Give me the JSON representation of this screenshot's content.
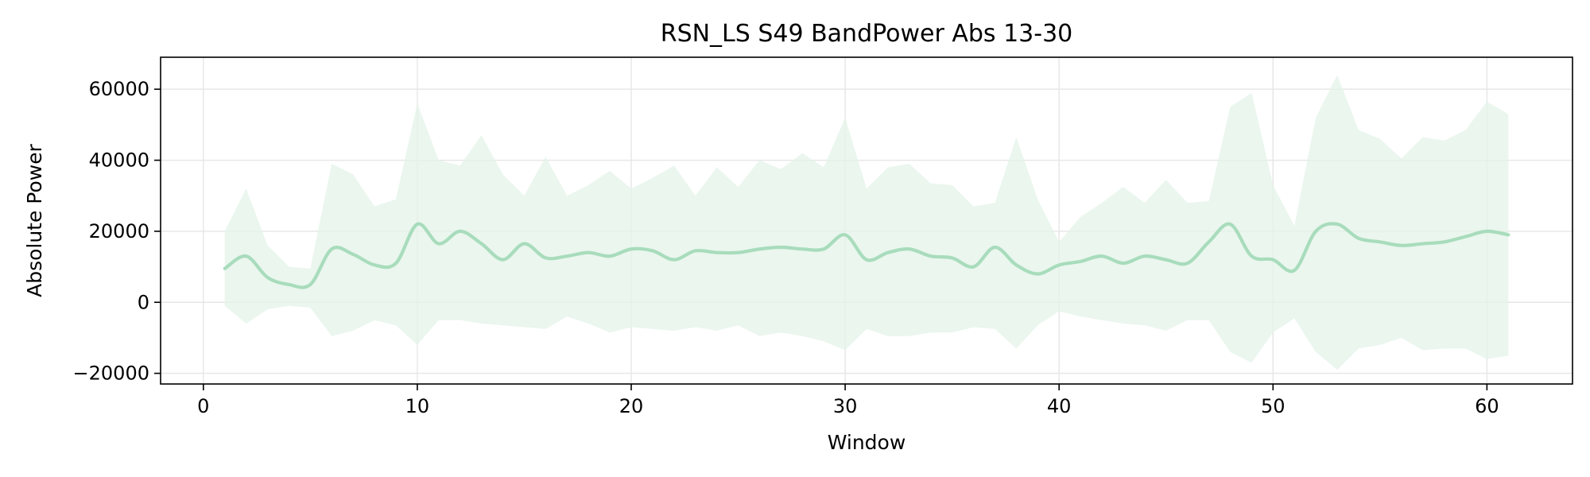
{
  "chart_data": {
    "type": "area",
    "title": "RSN_LS S49 BandPower Abs 13-30",
    "xlabel": "Window",
    "ylabel": "Absolute Power",
    "xlim": [
      -2,
      64
    ],
    "ylim": [
      -23000,
      69000
    ],
    "x_ticks": [
      0,
      10,
      20,
      30,
      40,
      50,
      60
    ],
    "x_tick_labels": [
      "0",
      "10",
      "20",
      "30",
      "40",
      "50",
      "60"
    ],
    "y_ticks": [
      -20000,
      0,
      20000,
      40000,
      60000
    ],
    "y_tick_labels": [
      "−20000",
      "0",
      "20000",
      "40000",
      "60000"
    ],
    "grid": true,
    "legend": "none",
    "colors": {
      "line": "#a8dcbc",
      "band": "#e3f3e8",
      "grid": "#e6e6e6"
    },
    "series": [
      {
        "x": [
          1,
          2,
          3,
          4,
          5,
          6,
          7,
          8,
          9,
          10,
          11,
          12,
          13,
          14,
          15,
          16,
          17,
          18,
          19,
          20,
          21,
          22,
          23,
          24,
          25,
          26,
          27,
          28,
          29,
          30,
          31,
          32,
          33,
          34,
          35,
          36,
          37,
          38,
          39,
          40,
          41,
          42,
          43,
          44,
          45,
          46,
          47,
          48,
          49,
          50,
          51,
          52,
          53,
          54,
          55,
          56,
          57,
          58,
          59,
          60,
          61
        ],
        "mean": [
          9500,
          13000,
          7000,
          5000,
          5000,
          15000,
          13500,
          10500,
          11000,
          22000,
          16500,
          20000,
          16500,
          12000,
          16500,
          12500,
          13000,
          14000,
          13000,
          15000,
          14500,
          12000,
          14500,
          14000,
          14000,
          15000,
          15500,
          15000,
          15000,
          19000,
          12000,
          14000,
          15000,
          13000,
          12500,
          10000,
          15500,
          10500,
          8000,
          10500,
          11500,
          13000,
          11000,
          13000,
          12000,
          11000,
          17000,
          22000,
          13000,
          12000,
          9000,
          20000,
          22000,
          18000,
          17000,
          16000,
          16500,
          17000,
          18500,
          20000,
          19000
        ],
        "upper": [
          20000,
          32000,
          16000,
          10000,
          9500,
          39000,
          36000,
          27000,
          29000,
          56000,
          40000,
          38500,
          47000,
          36000,
          30000,
          41000,
          30000,
          33000,
          37000,
          32000,
          35000,
          38500,
          30000,
          38000,
          32500,
          40000,
          37500,
          42000,
          38000,
          52000,
          32000,
          38000,
          39000,
          33500,
          33000,
          27000,
          28000,
          46500,
          29000,
          17000,
          24000,
          28000,
          32500,
          28000,
          34500,
          28000,
          28500,
          55000,
          59000,
          33000,
          21500,
          52000,
          64000,
          48500,
          46000,
          40500,
          46500,
          45500,
          48500,
          56500,
          53000
        ],
        "lower": [
          -1000,
          -6000,
          -2000,
          -1000,
          -1500,
          -9500,
          -8000,
          -5000,
          -6500,
          -12000,
          -5000,
          -5000,
          -6000,
          -6500,
          -7000,
          -7500,
          -4000,
          -6000,
          -8500,
          -7000,
          -7500,
          -8000,
          -7000,
          -8000,
          -6500,
          -9500,
          -8500,
          -9500,
          -11000,
          -13500,
          -7500,
          -9500,
          -9500,
          -8500,
          -8500,
          -7000,
          -7500,
          -13000,
          -6500,
          -2500,
          -4000,
          -5000,
          -6000,
          -6500,
          -8000,
          -5000,
          -5000,
          -14000,
          -17000,
          -8500,
          -4500,
          -14000,
          -19000,
          -13000,
          -12000,
          -10000,
          -13500,
          -13000,
          -13000,
          -16000,
          -15000
        ]
      }
    ]
  }
}
